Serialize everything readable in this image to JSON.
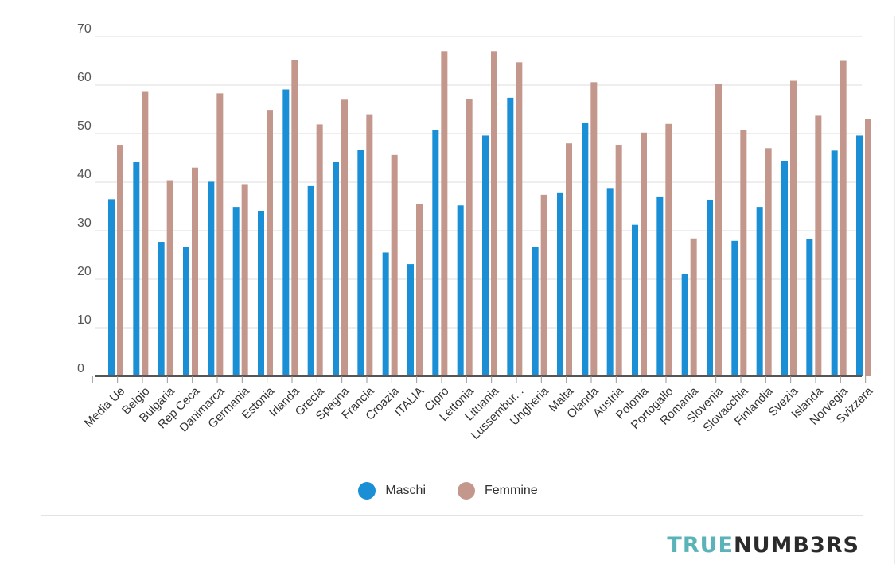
{
  "chart_data": {
    "type": "bar",
    "title": "",
    "xlabel": "",
    "ylabel": "",
    "ylim": [
      0,
      70
    ],
    "yticks": [
      "0",
      "10",
      "20",
      "30",
      "40",
      "50",
      "60",
      "70"
    ],
    "grid": true,
    "legend_position": "bottom-center",
    "categories": [
      "Media Ue",
      "Belgio",
      "Bulgaria",
      "Rep Ceca",
      "Danimarca",
      "Germania",
      "Estonia",
      "Irlanda",
      "Grecia",
      "Spagna",
      "Francia",
      "Croazia",
      "ITALIA",
      "Cipro",
      "Lettonia",
      "Lituania",
      "Lussembur...",
      "Ungheria",
      "Malta",
      "Olanda",
      "Austria",
      "Polonia",
      "Portogallo",
      "Romania",
      "Slovenia",
      "Slovacchia",
      "Finlandia",
      "Svezia",
      "Islanda",
      "Norvegia",
      "Svizzera"
    ],
    "series": [
      {
        "name": "Maschi",
        "color": "#1a8fd6",
        "values": [
          36.5,
          44.1,
          27.7,
          26.6,
          40.1,
          34.9,
          34.1,
          59.1,
          39.2,
          44.1,
          46.6,
          25.5,
          23.1,
          50.8,
          35.2,
          49.6,
          57.4,
          26.7,
          37.9,
          52.3,
          38.8,
          31.2,
          36.9,
          21.1,
          36.4,
          27.9,
          34.9,
          44.3,
          28.3,
          46.5,
          49.6
        ]
      },
      {
        "name": "Femmine",
        "color": "#c4978d",
        "values": [
          47.7,
          58.6,
          40.4,
          43.0,
          58.3,
          39.6,
          54.9,
          65.2,
          51.9,
          57.0,
          54.0,
          45.6,
          35.5,
          67.0,
          57.1,
          67.0,
          64.7,
          37.4,
          48.0,
          60.6,
          47.7,
          50.2,
          52.0,
          28.4,
          60.2,
          50.7,
          47.0,
          60.9,
          53.7,
          65.0,
          53.1
        ]
      }
    ]
  },
  "brand": {
    "part1": "TRUE",
    "part2": "NUMB3RS"
  }
}
